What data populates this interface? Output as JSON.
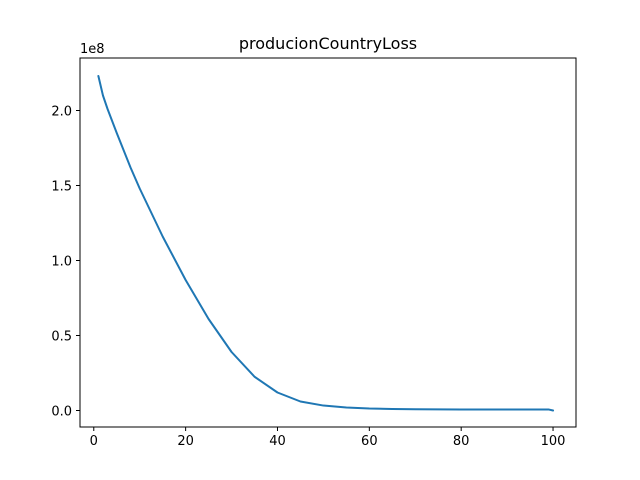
{
  "chart_data": {
    "type": "line",
    "title": "producionCountryLoss",
    "xlabel": "",
    "ylabel": "",
    "y_offset_label": "1e8",
    "xlim": [
      -3,
      105
    ],
    "ylim": [
      -0.11,
      2.35
    ],
    "x_ticks": [
      0,
      20,
      40,
      60,
      80,
      100
    ],
    "x_tick_labels": [
      "0",
      "20",
      "40",
      "60",
      "80",
      "100"
    ],
    "y_ticks": [
      0.0,
      0.5,
      1.0,
      1.5,
      2.0
    ],
    "y_tick_labels": [
      "0.0",
      "0.5",
      "1.0",
      "1.5",
      "2.0"
    ],
    "grid": false,
    "series": [
      {
        "color": "#1f77b4",
        "x": [
          1,
          2,
          3,
          5,
          8,
          10,
          15,
          20,
          25,
          30,
          35,
          40,
          45,
          50,
          55,
          60,
          65,
          70,
          80,
          90,
          99,
          100
        ],
        "y": [
          2.23,
          2.1,
          2.01,
          1.85,
          1.62,
          1.48,
          1.16,
          0.87,
          0.61,
          0.39,
          0.225,
          0.12,
          0.06,
          0.033,
          0.02,
          0.013,
          0.01,
          0.008,
          0.007,
          0.007,
          0.007,
          0.0
        ]
      }
    ]
  }
}
